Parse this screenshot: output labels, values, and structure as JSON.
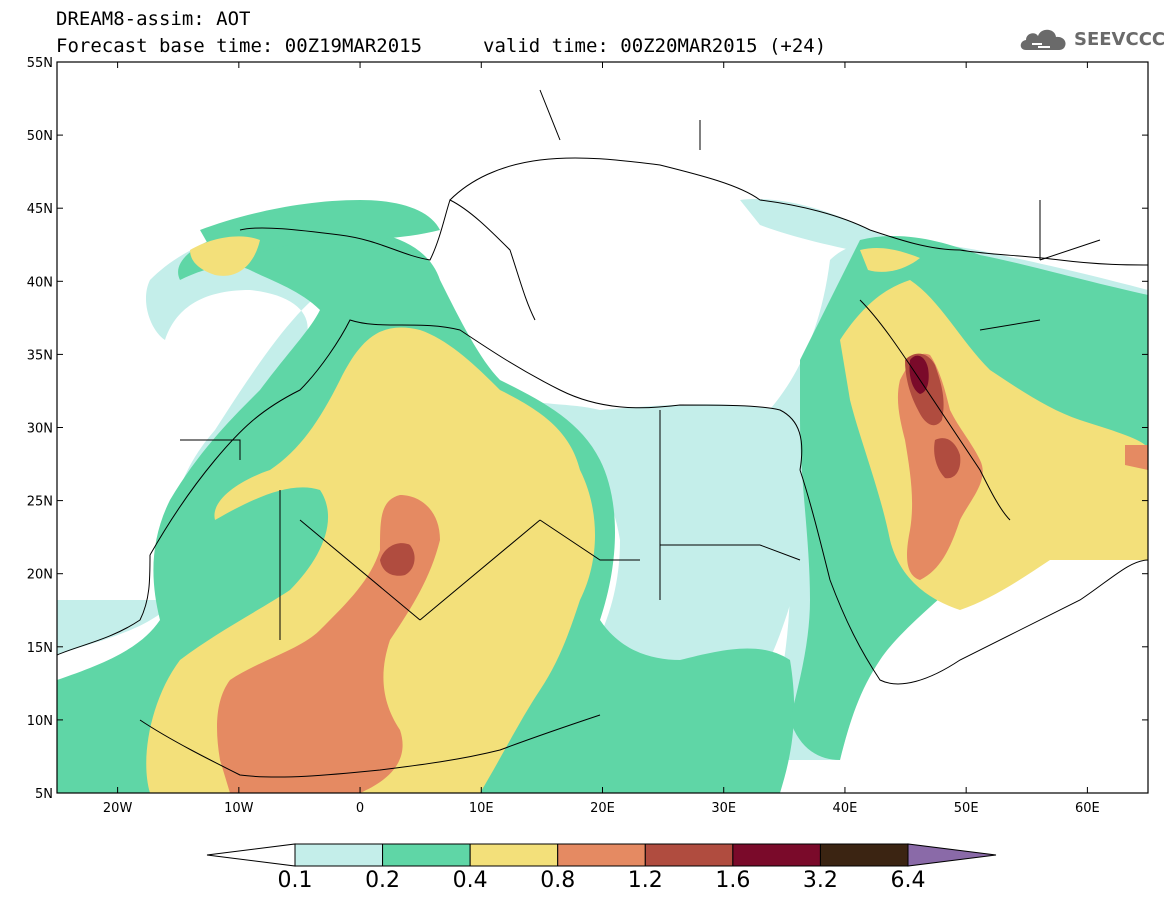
{
  "title": {
    "line1": "DREAM8-assim: AOT",
    "base_time": "Forecast base time: 00Z19MAR2015",
    "valid_time": "valid time: 00Z20MAR2015 (+24)"
  },
  "logo": {
    "text": "SEEVCCC",
    "icon": "cloud-logo-icon",
    "color": "#6a6a6a"
  },
  "map": {
    "lat_labels": [
      "55N",
      "50N",
      "45N",
      "40N",
      "35N",
      "30N",
      "25N",
      "20N",
      "15N",
      "10N",
      "5N"
    ],
    "lon_labels": [
      "20W",
      "10W",
      "0",
      "10E",
      "20E",
      "30E",
      "40E",
      "50E",
      "60E"
    ],
    "lat_range": [
      5,
      55
    ],
    "lon_range": [
      -25,
      65
    ]
  },
  "colorbar": {
    "labels": [
      "0.1",
      "0.2",
      "0.4",
      "0.8",
      "1.2",
      "1.6",
      "3.2",
      "6.4"
    ],
    "colors": [
      "#ffffff",
      "#c4eeea",
      "#5fd6a6",
      "#f3e07a",
      "#e58a62",
      "#b04c3f",
      "#7a0a2a",
      "#3b2412",
      "#8a6aa8"
    ],
    "levels": {
      "light_cyan": "#c4eeea",
      "green": "#5fd6a6",
      "yellow": "#f3e07a",
      "orange": "#e58a62",
      "red_brown": "#b04c3f",
      "maroon": "#7a0a2a"
    }
  }
}
